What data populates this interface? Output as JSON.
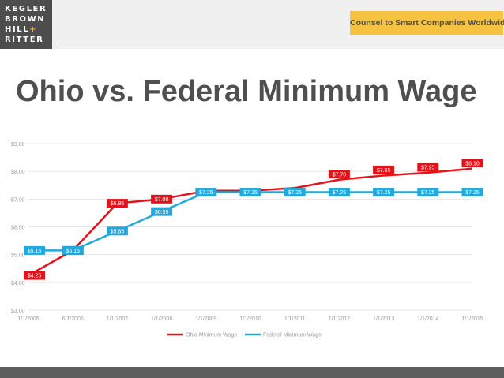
{
  "header": {
    "logo_lines": [
      "KEGLER",
      "BROWN",
      "HILL",
      "RITTER"
    ],
    "logo_plus": "+",
    "tagline": "Counsel to Smart Companies Worldwide"
  },
  "slide": {
    "title": "Ohio vs. Federal Minimum Wage"
  },
  "colors": {
    "ohio": "#e3131b",
    "federal": "#22a8dc",
    "logo_bg": "#4d4d4d",
    "tagline_bg": "#f5c242",
    "footer": "#5e5e5e"
  },
  "chart_data": {
    "type": "line",
    "title": "",
    "xlabel": "",
    "ylabel": "",
    "x": [
      "1/1/2006",
      "6/1/2006",
      "1/1/2007",
      "1/1/2008",
      "1/1/2009",
      "1/1/2010",
      "1/1/2011",
      "1/1/2012",
      "1/1/2013",
      "1/1/2014",
      "1/1/2015"
    ],
    "ylim": [
      3,
      9
    ],
    "yticks": [
      "$3.00",
      "$4.00",
      "$5.00",
      "$6.00",
      "$7.00",
      "$8.00",
      "$9.00"
    ],
    "grid": true,
    "legend": "bottom",
    "series": [
      {
        "name": "Ohio Minimum Wage",
        "values": [
          4.25,
          5.15,
          6.85,
          7.0,
          7.3,
          7.3,
          7.4,
          7.7,
          7.85,
          7.95,
          8.1
        ],
        "labels": [
          "$4.25",
          "$5.15",
          "$6.85",
          "$7.00",
          "$7.30",
          "$7.30",
          "$7.40",
          "$7.70",
          "$7.85",
          "$7.95",
          "$8.10"
        ],
        "show_label": [
          true,
          true,
          true,
          true,
          false,
          false,
          false,
          true,
          true,
          true,
          true
        ]
      },
      {
        "name": "Federal Minimum Wage",
        "values": [
          5.15,
          5.15,
          5.85,
          6.55,
          7.25,
          7.25,
          7.25,
          7.25,
          7.25,
          7.25,
          7.25
        ],
        "labels": [
          "$5.15",
          "$5.15",
          "$5.85",
          "$6.55",
          "$7.25",
          "$7.25",
          "$7.25",
          "$7.25",
          "$7.25",
          "$7.25",
          "$7.25"
        ],
        "show_label": [
          true,
          true,
          true,
          true,
          true,
          true,
          true,
          true,
          true,
          true,
          true
        ]
      }
    ]
  }
}
